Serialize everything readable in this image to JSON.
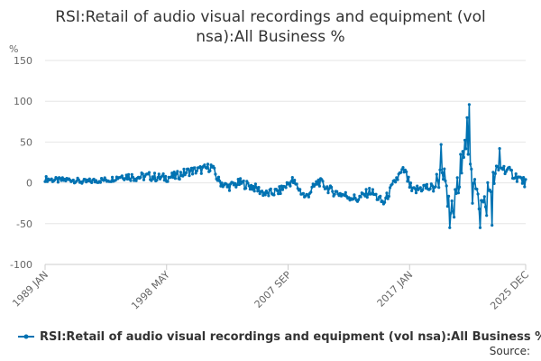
{
  "chart_data": {
    "type": "line",
    "title_lines": [
      "RSI:Retail of audio visual recordings and equipment (vol",
      "nsa):All Business %"
    ],
    "ylabel": "%",
    "ylim": [
      -100,
      150
    ],
    "yticks": [
      "150",
      "100",
      "50",
      "0",
      "-50",
      "-100"
    ],
    "xticks": [
      "1989 JAN",
      "1998 MAY",
      "2007 SEP",
      "2017 JAN",
      "2025 DEC"
    ],
    "grid": true,
    "legend_position": "bottom",
    "source_label": "Source:",
    "series": [
      {
        "name": "RSI:Retail of audio visual recordings and equipment (vol nsa):All Business %",
        "color": "#0072b2",
        "x_start": "1989-01",
        "x_end": "2025-12",
        "anchors": [
          [
            1989.0,
            5
          ],
          [
            1990.0,
            3
          ],
          [
            1991.0,
            4
          ],
          [
            1992.0,
            1
          ],
          [
            1993.0,
            3
          ],
          [
            1994.0,
            4
          ],
          [
            1995.0,
            9
          ],
          [
            1996.0,
            7
          ],
          [
            1997.0,
            8
          ],
          [
            1998.0,
            6
          ],
          [
            1999.0,
            8
          ],
          [
            2000.0,
            14
          ],
          [
            2001.0,
            16
          ],
          [
            2001.8,
            20
          ],
          [
            2002.3,
            3
          ],
          [
            2003.0,
            -5
          ],
          [
            2004.0,
            0
          ],
          [
            2005.0,
            -5
          ],
          [
            2006.0,
            -14
          ],
          [
            2007.0,
            -10
          ],
          [
            2008.0,
            3
          ],
          [
            2009.0,
            -18
          ],
          [
            2010.0,
            2
          ],
          [
            2011.0,
            -10
          ],
          [
            2012.0,
            -15
          ],
          [
            2013.0,
            -20
          ],
          [
            2014.0,
            -10
          ],
          [
            2015.0,
            -25
          ],
          [
            2016.0,
            5
          ],
          [
            2016.6,
            15
          ],
          [
            2017.2,
            -12
          ],
          [
            2018.0,
            -5
          ],
          [
            2018.8,
            -7
          ],
          [
            2019.6,
            15
          ],
          [
            2019.9,
            -25
          ],
          [
            2020.3,
            -35
          ],
          [
            2020.8,
            5
          ],
          [
            2021.2,
            40
          ],
          [
            2021.7,
            30
          ],
          [
            2022.2,
            -20
          ],
          [
            2022.6,
            -25
          ],
          [
            2023.0,
            -10
          ],
          [
            2023.5,
            5
          ],
          [
            2024.0,
            20
          ],
          [
            2024.5,
            15
          ],
          [
            2025.0,
            10
          ],
          [
            2025.9,
            0
          ]
        ],
        "spikes": [
          [
            2019.4,
            47
          ],
          [
            2020.1,
            -55
          ],
          [
            2020.4,
            -42
          ],
          [
            2020.9,
            35
          ],
          [
            2021.45,
            80
          ],
          [
            2021.6,
            96
          ],
          [
            2021.8,
            -25
          ],
          [
            2022.4,
            -55
          ],
          [
            2022.9,
            -40
          ],
          [
            2023.3,
            -52
          ],
          [
            2023.9,
            42
          ]
        ]
      }
    ]
  }
}
